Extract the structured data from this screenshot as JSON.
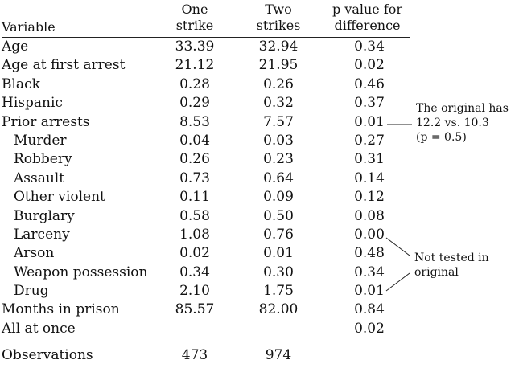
{
  "headers": {
    "variable": "Variable",
    "one_strike": [
      "One",
      "strike"
    ],
    "two_strikes": [
      "Two",
      "strikes"
    ],
    "p_value": [
      "p value for",
      "difference"
    ]
  },
  "rows": [
    {
      "label": "Age",
      "indent": false,
      "one": "33.39",
      "two": "32.94",
      "p": "0.34"
    },
    {
      "label": "Age at first arrest",
      "indent": false,
      "one": "21.12",
      "two": "21.95",
      "p": "0.02"
    },
    {
      "label": "Black",
      "indent": false,
      "one": "0.28",
      "two": "0.26",
      "p": "0.46"
    },
    {
      "label": "Hispanic",
      "indent": false,
      "one": "0.29",
      "two": "0.32",
      "p": "0.37"
    },
    {
      "label": "Prior arrests",
      "indent": false,
      "one": "8.53",
      "two": "7.57",
      "p": "0.01"
    },
    {
      "label": "Murder",
      "indent": true,
      "one": "0.04",
      "two": "0.03",
      "p": "0.27"
    },
    {
      "label": "Robbery",
      "indent": true,
      "one": "0.26",
      "two": "0.23",
      "p": "0.31"
    },
    {
      "label": "Assault",
      "indent": true,
      "one": "0.73",
      "two": "0.64",
      "p": "0.14"
    },
    {
      "label": "Other violent",
      "indent": true,
      "one": "0.11",
      "two": "0.09",
      "p": "0.12"
    },
    {
      "label": "Burglary",
      "indent": true,
      "one": "0.58",
      "two": "0.50",
      "p": "0.08"
    },
    {
      "label": "Larceny",
      "indent": true,
      "one": "1.08",
      "two": "0.76",
      "p": "0.00"
    },
    {
      "label": "Arson",
      "indent": true,
      "one": "0.02",
      "two": "0.01",
      "p": "0.48"
    },
    {
      "label": "Weapon possession",
      "indent": true,
      "one": "0.34",
      "two": "0.30",
      "p": "0.34"
    },
    {
      "label": "Drug",
      "indent": true,
      "one": "2.10",
      "two": "1.75",
      "p": "0.01"
    },
    {
      "label": "Months in prison",
      "indent": false,
      "one": "85.57",
      "two": "82.00",
      "p": "0.84"
    },
    {
      "label": "All at once",
      "indent": false,
      "one": "",
      "two": "",
      "p": "0.02"
    }
  ],
  "observations": {
    "label": "Observations",
    "one": "473",
    "two": "974"
  },
  "notes": {
    "prior_arrests": [
      "The original has",
      "12.2 vs. 10.3",
      "(p = 0.5)"
    ],
    "not_tested": [
      "Not tested in",
      "original"
    ]
  }
}
